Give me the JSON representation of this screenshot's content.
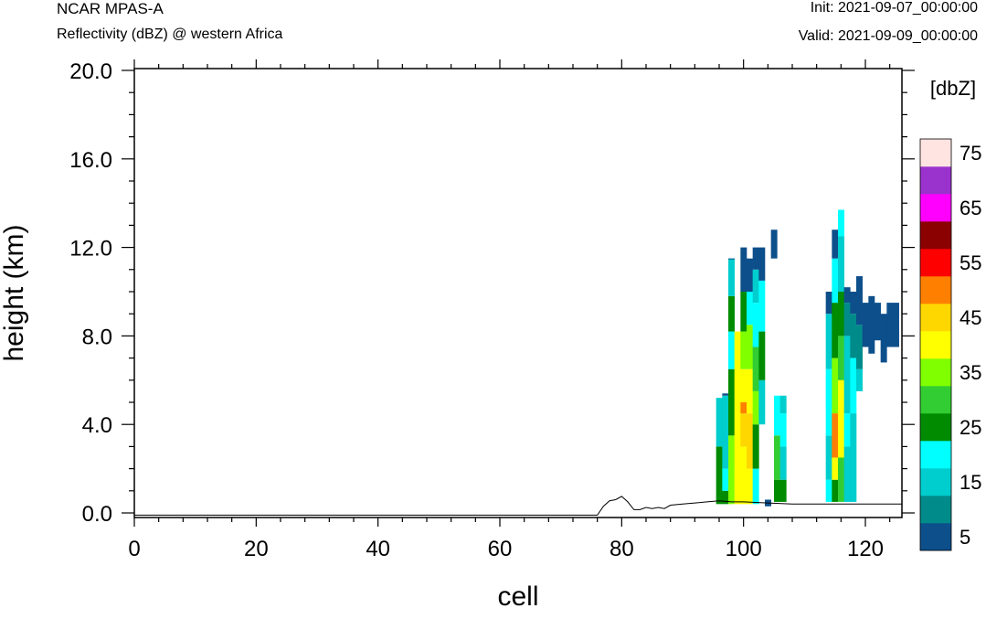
{
  "header": {
    "model": "NCAR MPAS-A",
    "field": "Reflectivity (dBZ) @ western Africa",
    "init": "Init: 2021-09-07_00:00:00",
    "valid": "Valid: 2021-09-09_00:00:00"
  },
  "chart_data": {
    "type": "heatmap",
    "xlabel": "cell",
    "ylabel": "height (km)",
    "xlim": [
      0,
      126
    ],
    "ylim": [
      0,
      20
    ],
    "xticks": [
      "0",
      "20",
      "40",
      "60",
      "80",
      "100",
      "120"
    ],
    "xtick_values": [
      0,
      20,
      40,
      60,
      80,
      100,
      120
    ],
    "yticks": [
      "0.0",
      "4.0",
      "8.0",
      "12.0",
      "16.0",
      "20.0"
    ],
    "ytick_values": [
      0,
      4,
      8,
      12,
      16,
      20
    ],
    "colorbar": {
      "title": "[dbZ]",
      "labels": [
        "5",
        "15",
        "25",
        "35",
        "45",
        "55",
        "65",
        "75"
      ],
      "levels": [
        5,
        10,
        15,
        20,
        25,
        30,
        35,
        40,
        45,
        50,
        55,
        60,
        65,
        70,
        75
      ],
      "colors": [
        "#0d4f8b",
        "#008b8b",
        "#00cdcd",
        "#00ffff",
        "#008b00",
        "#32cd32",
        "#7fff00",
        "#ffff00",
        "#ffd700",
        "#ff7f00",
        "#ff0000",
        "#8b0000",
        "#ff00ff",
        "#9a32cd",
        "#ffe4e1"
      ]
    },
    "terrain": [
      [
        0,
        -0.1
      ],
      [
        76,
        -0.1
      ],
      [
        77,
        0.3
      ],
      [
        78,
        0.55
      ],
      [
        79,
        0.6
      ],
      [
        80,
        0.75
      ],
      [
        81,
        0.5
      ],
      [
        82,
        0.15
      ],
      [
        83,
        0.15
      ],
      [
        84,
        0.25
      ],
      [
        85,
        0.2
      ],
      [
        86,
        0.25
      ],
      [
        87,
        0.2
      ],
      [
        88,
        0.35
      ],
      [
        90,
        0.4
      ],
      [
        92,
        0.45
      ],
      [
        94,
        0.5
      ],
      [
        96,
        0.55
      ],
      [
        98,
        0.5
      ],
      [
        100,
        0.5
      ],
      [
        104,
        0.45
      ],
      [
        108,
        0.4
      ],
      [
        112,
        0.4
      ],
      [
        116,
        0.4
      ],
      [
        120,
        0.4
      ],
      [
        126,
        0.4
      ]
    ],
    "columns": [
      {
        "x": 96,
        "segments": [
          [
            0.4,
            3.0,
            25
          ],
          [
            3.0,
            5.2,
            15
          ]
        ]
      },
      {
        "x": 97,
        "segments": [
          [
            0.4,
            1.0,
            25
          ],
          [
            1.0,
            2.0,
            20
          ],
          [
            2.0,
            5.3,
            15
          ],
          [
            5.3,
            5.4,
            5
          ]
        ]
      },
      {
        "x": 98,
        "segments": [
          [
            0.4,
            3.5,
            35
          ],
          [
            3.5,
            6.5,
            25
          ],
          [
            6.5,
            8.2,
            20
          ],
          [
            8.2,
            9.8,
            25
          ],
          [
            9.8,
            11.5,
            15
          ],
          [
            11.5,
            11.5,
            5
          ]
        ]
      },
      {
        "x": 99,
        "segments": [
          [
            0.4,
            8.2,
            42
          ]
        ]
      },
      {
        "x": 100,
        "segments": [
          [
            0.4,
            3.0,
            40
          ],
          [
            3.0,
            4.5,
            45
          ],
          [
            4.5,
            5.0,
            50
          ],
          [
            5.0,
            6.5,
            42
          ],
          [
            6.5,
            8.2,
            35
          ],
          [
            8.2,
            10.0,
            25
          ],
          [
            10.0,
            12.0,
            5
          ]
        ]
      },
      {
        "x": 101,
        "segments": [
          [
            0.4,
            2.0,
            42
          ],
          [
            2.0,
            4.5,
            45
          ],
          [
            4.5,
            6.5,
            40
          ],
          [
            6.5,
            8.5,
            35
          ],
          [
            8.5,
            10.0,
            20
          ],
          [
            10.0,
            11.5,
            5
          ]
        ]
      },
      {
        "x": 102,
        "segments": [
          [
            0.4,
            2.0,
            20
          ],
          [
            2.0,
            4.0,
            25
          ],
          [
            4.0,
            5.5,
            35
          ],
          [
            5.5,
            7.5,
            30
          ],
          [
            7.5,
            9.5,
            20
          ],
          [
            9.5,
            11.0,
            15
          ],
          [
            11.0,
            12.0,
            5
          ]
        ]
      },
      {
        "x": 103,
        "segments": [
          [
            4.0,
            6.0,
            15
          ],
          [
            6.0,
            8.2,
            25
          ],
          [
            8.2,
            10.5,
            20
          ],
          [
            10.5,
            12.0,
            5
          ]
        ]
      },
      {
        "x": 104,
        "segments": [
          [
            0.3,
            0.6,
            5
          ]
        ]
      },
      {
        "x": 105,
        "segments": [
          [
            11.5,
            12.8,
            5
          ]
        ]
      },
      {
        "x": 105.5,
        "segments": [
          [
            0.5,
            1.5,
            25
          ],
          [
            1.5,
            3.5,
            30
          ],
          [
            3.5,
            5.3,
            20
          ]
        ]
      },
      {
        "x": 106.5,
        "segments": [
          [
            0.5,
            1.5,
            25
          ],
          [
            1.5,
            3.0,
            15
          ],
          [
            3.0,
            4.5,
            20
          ],
          [
            4.5,
            5.3,
            15
          ]
        ]
      },
      {
        "x": 114,
        "segments": [
          [
            0.5,
            1.5,
            20
          ],
          [
            1.5,
            3.5,
            15
          ],
          [
            3.5,
            6.5,
            20
          ],
          [
            6.5,
            9.0,
            15
          ],
          [
            9.0,
            10.0,
            5
          ]
        ]
      },
      {
        "x": 115,
        "segments": [
          [
            0.5,
            1.5,
            25
          ],
          [
            1.5,
            2.5,
            40
          ],
          [
            2.5,
            4.5,
            50
          ],
          [
            4.5,
            7.0,
            35
          ],
          [
            7.0,
            9.5,
            25
          ],
          [
            9.5,
            11.5,
            20
          ],
          [
            11.5,
            12.8,
            5
          ]
        ]
      },
      {
        "x": 116,
        "segments": [
          [
            0.5,
            2.5,
            30
          ],
          [
            2.5,
            6.0,
            42
          ],
          [
            6.0,
            8.0,
            30
          ],
          [
            8.0,
            10.0,
            25
          ],
          [
            10.0,
            12.5,
            15
          ],
          [
            12.5,
            13.7,
            20
          ]
        ]
      },
      {
        "x": 117,
        "segments": [
          [
            0.5,
            3.0,
            15
          ],
          [
            3.0,
            4.5,
            20
          ],
          [
            4.5,
            8.0,
            15
          ],
          [
            8.0,
            9.5,
            10
          ],
          [
            9.5,
            10.2,
            5
          ]
        ]
      },
      {
        "x": 118,
        "segments": [
          [
            0.5,
            4.5,
            15
          ],
          [
            4.5,
            7.0,
            20
          ],
          [
            7.0,
            9.0,
            10
          ],
          [
            9.0,
            10.0,
            5
          ]
        ]
      },
      {
        "x": 119,
        "segments": [
          [
            5.5,
            6.5,
            15
          ],
          [
            6.5,
            8.5,
            10
          ],
          [
            8.5,
            10.7,
            5
          ]
        ]
      },
      {
        "x": 120,
        "segments": [
          [
            7.5,
            9.5,
            5
          ]
        ]
      },
      {
        "x": 121,
        "segments": [
          [
            7.2,
            9.8,
            5
          ]
        ]
      },
      {
        "x": 122,
        "segments": [
          [
            7.8,
            9.5,
            5
          ]
        ]
      },
      {
        "x": 123,
        "segments": [
          [
            6.8,
            9.0,
            5
          ]
        ]
      },
      {
        "x": 124,
        "segments": [
          [
            7.5,
            9.5,
            5
          ]
        ]
      },
      {
        "x": 125,
        "segments": [
          [
            7.5,
            9.5,
            5
          ]
        ]
      }
    ]
  }
}
